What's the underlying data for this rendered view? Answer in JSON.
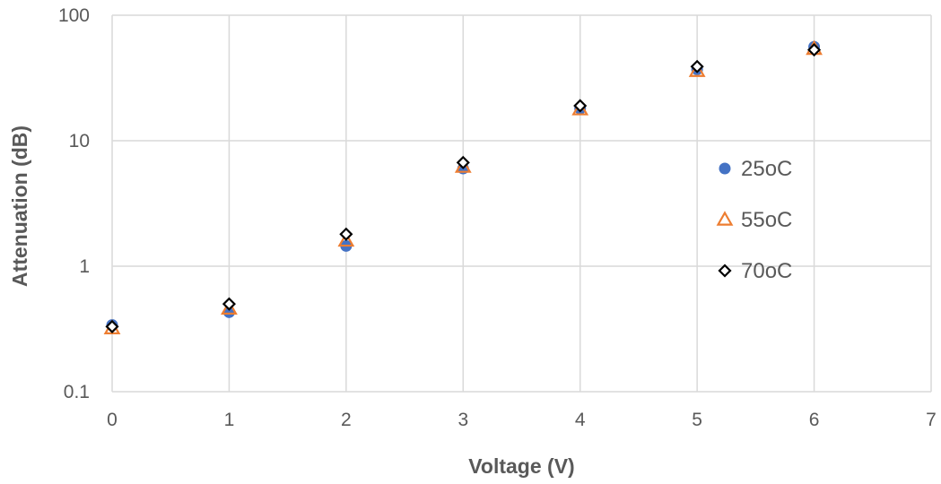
{
  "chart_data": {
    "type": "scatter",
    "title": "",
    "xlabel": "Voltage (V)",
    "ylabel": "Attenuation (dB)",
    "xlim": [
      0,
      7
    ],
    "ylim": [
      0.1,
      100
    ],
    "y_scale": "log",
    "x_ticks": [
      "0",
      "1",
      "2",
      "3",
      "4",
      "5",
      "6",
      "7"
    ],
    "y_ticks": [
      "0.1",
      "1",
      "10",
      "100"
    ],
    "grid": true,
    "legend_position": "right",
    "series": [
      {
        "name": "25oC",
        "marker": "circle",
        "color": "#4472C4",
        "x": [
          0,
          1,
          2,
          3,
          4,
          5,
          6
        ],
        "y": [
          0.34,
          0.43,
          1.45,
          6.0,
          18.0,
          37.0,
          56.0
        ]
      },
      {
        "name": "55oC",
        "marker": "triangle",
        "color": "#ED7D31",
        "x": [
          0,
          1,
          2,
          3,
          4,
          5,
          6
        ],
        "y": [
          0.32,
          0.46,
          1.6,
          6.2,
          17.8,
          36.0,
          54.0
        ]
      },
      {
        "name": "70oC",
        "marker": "diamond",
        "color": "#000000",
        "x": [
          0,
          1,
          2,
          3,
          4,
          5,
          6
        ],
        "y": [
          0.33,
          0.5,
          1.8,
          6.7,
          19.0,
          39.0,
          53.0
        ]
      }
    ]
  }
}
